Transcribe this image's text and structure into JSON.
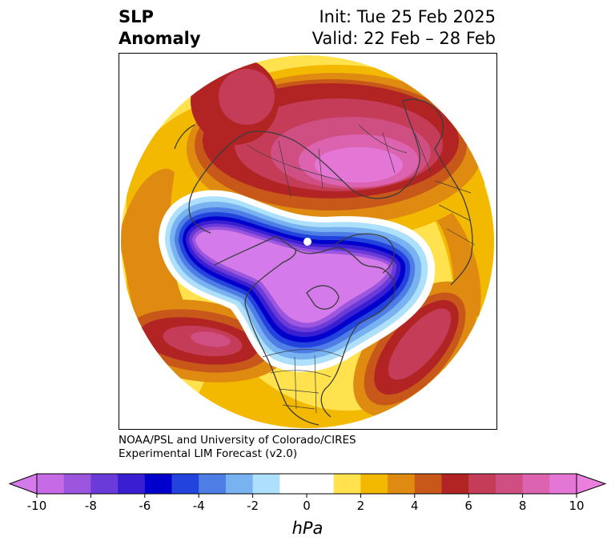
{
  "title": {
    "left_line1": "SLP",
    "left_line2": "Anomaly",
    "right_line1": "Init: Tue 25 Feb 2025",
    "right_line2": "Valid: 22 Feb – 28 Feb"
  },
  "credit": {
    "line1": "NOAA/PSL and University of Colorado/CIRES",
    "line2": "Experimental LIM Forecast (v2.0)"
  },
  "colorbar": {
    "unit": "hPa",
    "tick_labels": [
      "-10",
      "-8",
      "-6",
      "-4",
      "-2",
      "0",
      "2",
      "4",
      "6",
      "8",
      "10"
    ],
    "tick_values": [
      -10,
      -8,
      -6,
      -4,
      -2,
      0,
      2,
      4,
      6,
      8,
      10
    ],
    "bounds": [
      -10,
      -9,
      -8,
      -7,
      -6,
      -5,
      -4,
      -3,
      -2,
      -1,
      1,
      2,
      3,
      4,
      5,
      6,
      7,
      8,
      9,
      10
    ],
    "colors": [
      "#c76ae6",
      "#9b55de",
      "#6a3bd8",
      "#3a1fd2",
      "#0000cc",
      "#2244dd",
      "#4f7de6",
      "#79b2f0",
      "#ade0fb",
      "#ffffff",
      "#ffe24d",
      "#f3b800",
      "#df8a11",
      "#c8581a",
      "#b22424",
      "#c43c58",
      "#d04f82",
      "#dc63b0",
      "#e477d6"
    ],
    "under_color": "#d47aea",
    "over_color": "#ea7fde"
  },
  "map": {
    "projection": "north-polar-stereographic",
    "features": [
      "coastlines",
      "country-borders",
      "state-borders"
    ],
    "anomalies": [
      {
        "region": "North America",
        "sign": "negative",
        "peak": -10
      },
      {
        "region": "Siberia",
        "sign": "positive",
        "peak": 10
      },
      {
        "region": "Northern Europe",
        "sign": "positive",
        "peak": 7
      },
      {
        "region": "North Pacific",
        "sign": "positive",
        "peak": 6
      },
      {
        "region": "North Atlantic",
        "sign": "positive",
        "peak": 6
      }
    ]
  }
}
